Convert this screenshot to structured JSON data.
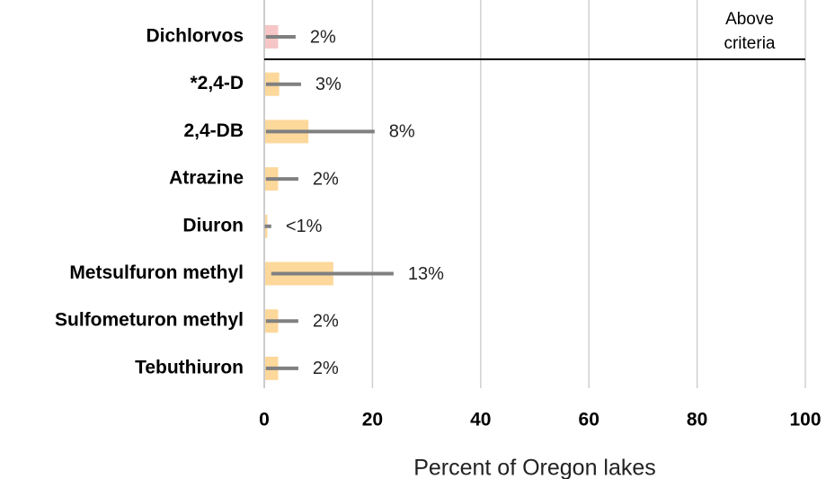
{
  "chart_data": {
    "type": "bar",
    "orientation": "horizontal",
    "categories": [
      "Dichlorvos",
      "*2,4-D",
      "2,4-DB",
      "Atrazine",
      "Diuron",
      "Metsulfuron methyl",
      "Sulfometuron methyl",
      "Tebuthiuron"
    ],
    "values": [
      2.4,
      2.6,
      8,
      2.4,
      0.4,
      12.6,
      2.4,
      2.4
    ],
    "value_labels": [
      "2%",
      "3%",
      "8%",
      "2%",
      "<1%",
      "13%",
      "2%",
      "2%"
    ],
    "error_low": [
      0.3,
      0.3,
      0.3,
      0.3,
      0.1,
      1.3,
      0.3,
      0.3
    ],
    "error_high": [
      5.8,
      6.8,
      20.4,
      6.3,
      1.3,
      23.9,
      6.3,
      6.3
    ],
    "colors": [
      "#f6c6c6",
      "#fdd89b",
      "#fdd89b",
      "#fdd89b",
      "#fdd89b",
      "#fdd89b",
      "#fdd89b",
      "#fdd89b"
    ],
    "error_color": "#808080",
    "xlim": [
      0,
      100
    ],
    "xticks": [
      0,
      20,
      40,
      60,
      80,
      100
    ],
    "grid": true,
    "x_label": "Percent of Oregon lakes",
    "annotation": [
      "Above",
      "criteria"
    ]
  }
}
